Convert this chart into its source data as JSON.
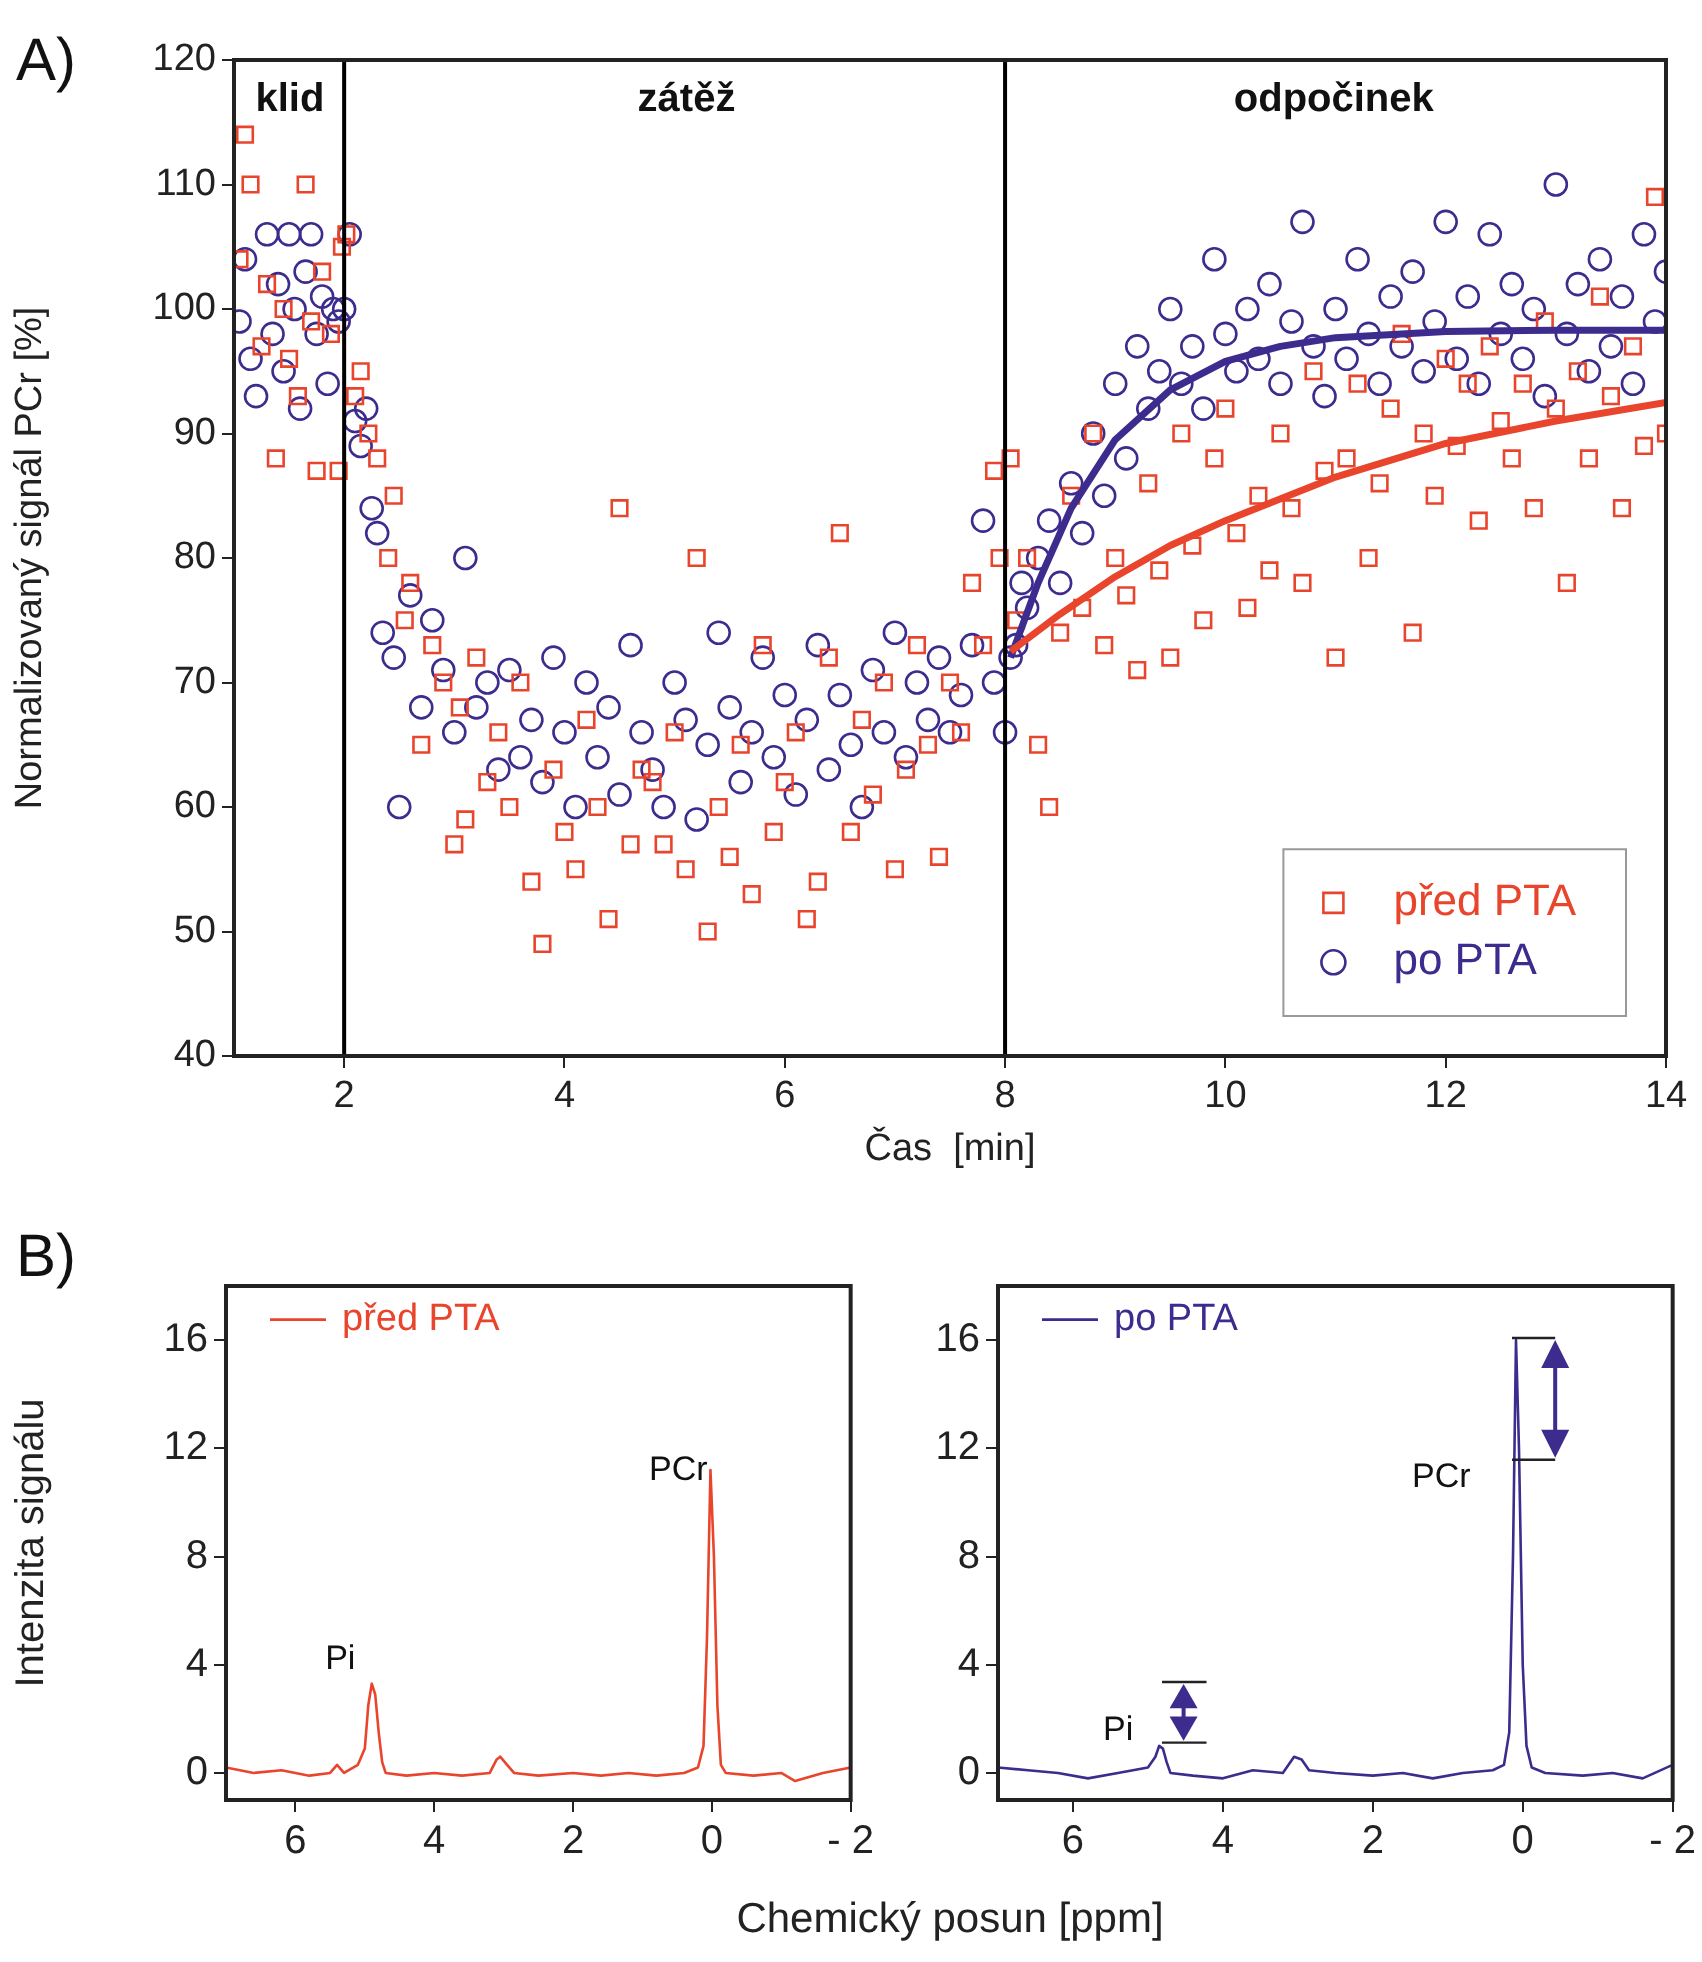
{
  "chart_data": [
    {
      "type": "scatter",
      "title": "A)",
      "xlabel": "Čas  [min]",
      "ylabel": "Normalizovaný signál PCr [%]",
      "xlim": [
        1,
        14
      ],
      "xticks": [
        2,
        4,
        6,
        8,
        10,
        12,
        14
      ],
      "ylim": [
        40,
        120
      ],
      "yticks": [
        40,
        50,
        60,
        70,
        80,
        90,
        100,
        110,
        120
      ],
      "grid": false,
      "legend": "bottom right",
      "series": [
        {
          "name": "před PTA",
          "color": "#e8452c",
          "marker": "square",
          "x": [
            1.05,
            1.1,
            1.15,
            1.25,
            1.3,
            1.38,
            1.45,
            1.5,
            1.58,
            1.65,
            1.7,
            1.75,
            1.8,
            1.88,
            1.95,
            1.98,
            2.02,
            2.1,
            2.15,
            2.22,
            2.3,
            2.4,
            2.45,
            2.55,
            2.6,
            2.7,
            2.8,
            2.9,
            3.0,
            3.05,
            3.1,
            3.2,
            3.3,
            3.4,
            3.5,
            3.6,
            3.7,
            3.8,
            3.9,
            4.0,
            4.1,
            4.2,
            4.3,
            4.4,
            4.5,
            4.6,
            4.7,
            4.8,
            4.9,
            5.0,
            5.1,
            5.2,
            5.3,
            5.4,
            5.5,
            5.6,
            5.7,
            5.8,
            5.9,
            6.0,
            6.1,
            6.2,
            6.3,
            6.4,
            6.5,
            6.6,
            6.7,
            6.8,
            6.9,
            7.0,
            7.1,
            7.2,
            7.3,
            7.4,
            7.5,
            7.6,
            7.7,
            7.8,
            7.9,
            7.95,
            8.05,
            8.1,
            8.2,
            8.3,
            8.4,
            8.5,
            8.6,
            8.7,
            8.8,
            8.9,
            9.0,
            9.1,
            9.2,
            9.3,
            9.4,
            9.5,
            9.6,
            9.7,
            9.8,
            9.9,
            10.0,
            10.1,
            10.2,
            10.3,
            10.4,
            10.5,
            10.6,
            10.7,
            10.8,
            10.9,
            11.0,
            11.1,
            11.2,
            11.3,
            11.4,
            11.5,
            11.6,
            11.7,
            11.8,
            11.9,
            12.0,
            12.1,
            12.2,
            12.3,
            12.4,
            12.5,
            12.6,
            12.7,
            12.8,
            12.9,
            13.0,
            13.1,
            13.2,
            13.3,
            13.4,
            13.5,
            13.6,
            13.7,
            13.8,
            13.9,
            14.0
          ],
          "values": [
            104,
            114,
            110,
            97,
            102,
            88,
            100,
            96,
            93,
            110,
            99,
            87,
            103,
            98,
            87,
            105,
            106,
            93,
            95,
            90,
            88,
            80,
            85,
            75,
            78,
            65,
            73,
            70,
            57,
            68,
            59,
            72,
            62,
            66,
            60,
            70,
            54,
            49,
            63,
            58,
            55,
            67,
            60,
            51,
            84,
            57,
            63,
            62,
            57,
            66,
            55,
            80,
            50,
            60,
            56,
            65,
            53,
            73,
            58,
            62,
            66,
            51,
            54,
            72,
            82,
            58,
            67,
            61,
            70,
            55,
            63,
            73,
            65,
            56,
            70,
            66,
            78,
            73,
            87,
            80,
            88,
            75,
            80,
            65,
            60,
            74,
            85,
            76,
            90,
            73,
            80,
            77,
            71,
            86,
            79,
            72,
            90,
            81,
            75,
            88,
            92,
            82,
            76,
            85,
            79,
            90,
            84,
            78,
            95,
            87,
            72,
            88,
            94,
            80,
            86,
            92,
            98,
            74,
            90,
            85,
            96,
            89,
            94,
            83,
            97,
            91,
            88,
            94,
            84,
            99,
            92,
            78,
            95,
            88,
            101,
            93,
            84,
            97,
            89,
            109,
            90
          ]
        },
        {
          "name": "po PTA",
          "color": "#3d2b8e",
          "marker": "circle",
          "x": [
            1.05,
            1.1,
            1.15,
            1.2,
            1.3,
            1.35,
            1.4,
            1.45,
            1.5,
            1.55,
            1.6,
            1.65,
            1.7,
            1.75,
            1.8,
            1.85,
            1.9,
            1.95,
            2.0,
            2.05,
            2.1,
            2.15,
            2.2,
            2.25,
            2.3,
            2.35,
            2.45,
            2.5,
            2.6,
            2.7,
            2.8,
            2.9,
            3.0,
            3.1,
            3.2,
            3.3,
            3.4,
            3.5,
            3.6,
            3.7,
            3.8,
            3.9,
            4.0,
            4.1,
            4.2,
            4.3,
            4.4,
            4.5,
            4.6,
            4.7,
            4.8,
            4.9,
            5.0,
            5.1,
            5.2,
            5.3,
            5.4,
            5.5,
            5.6,
            5.7,
            5.8,
            5.9,
            6.0,
            6.1,
            6.2,
            6.3,
            6.4,
            6.5,
            6.6,
            6.7,
            6.8,
            6.9,
            7.0,
            7.1,
            7.2,
            7.3,
            7.4,
            7.5,
            7.6,
            7.7,
            7.8,
            7.9,
            8.0,
            8.05,
            8.1,
            8.15,
            8.2,
            8.3,
            8.4,
            8.5,
            8.6,
            8.7,
            8.8,
            8.9,
            9.0,
            9.1,
            9.2,
            9.3,
            9.4,
            9.5,
            9.6,
            9.7,
            9.8,
            9.9,
            10.0,
            10.1,
            10.2,
            10.3,
            10.4,
            10.5,
            10.6,
            10.7,
            10.8,
            10.9,
            11.0,
            11.1,
            11.2,
            11.3,
            11.4,
            11.5,
            11.6,
            11.7,
            11.8,
            11.9,
            12.0,
            12.1,
            12.2,
            12.3,
            12.4,
            12.5,
            12.6,
            12.7,
            12.8,
            12.9,
            13.0,
            13.1,
            13.2,
            13.3,
            13.4,
            13.5,
            13.6,
            13.7,
            13.8,
            13.9,
            14.0
          ],
          "values": [
            99,
            104,
            96,
            93,
            106,
            98,
            102,
            95,
            106,
            100,
            92,
            103,
            106,
            98,
            101,
            94,
            100,
            99,
            100,
            106,
            91,
            89,
            92,
            84,
            82,
            74,
            72,
            60,
            77,
            68,
            75,
            71,
            66,
            80,
            68,
            70,
            63,
            71,
            64,
            67,
            62,
            72,
            66,
            60,
            70,
            64,
            68,
            61,
            73,
            66,
            63,
            60,
            70,
            67,
            59,
            65,
            74,
            68,
            62,
            66,
            72,
            64,
            69,
            61,
            67,
            73,
            63,
            69,
            65,
            60,
            71,
            66,
            74,
            64,
            70,
            67,
            72,
            66,
            69,
            73,
            83,
            70,
            66,
            72,
            73,
            78,
            76,
            80,
            83,
            78,
            86,
            82,
            90,
            85,
            94,
            88,
            97,
            92,
            95,
            100,
            94,
            97,
            92,
            104,
            98,
            95,
            100,
            96,
            102,
            94,
            99,
            107,
            97,
            93,
            100,
            96,
            104,
            98,
            94,
            101,
            97,
            103,
            95,
            99,
            107,
            96,
            101,
            94,
            106,
            98,
            102,
            96,
            100,
            93,
            110,
            98,
            102,
            95,
            104,
            97,
            101,
            94,
            106,
            99,
            103
          ]
        },
        {
          "type": "line",
          "color": "#e8452c",
          "marker": "none",
          "x": [
            8.05,
            8.5,
            9,
            9.5,
            10,
            11,
            12,
            13,
            14
          ],
          "values": [
            72.5,
            75.5,
            78.5,
            81,
            83,
            86.5,
            89.2,
            91,
            92.5
          ]
        },
        {
          "type": "line",
          "color": "#3d2b8e",
          "marker": "none",
          "x": [
            8.05,
            8.3,
            8.6,
            9,
            9.5,
            10,
            10.5,
            11,
            12,
            13,
            14
          ],
          "values": [
            72,
            78,
            84,
            89.5,
            93.5,
            95.8,
            97,
            97.7,
            98.2,
            98.3,
            98.3
          ]
        }
      ],
      "ref_lines": [
        {
          "axis": "x",
          "value": 2,
          "color": "#000000"
        },
        {
          "axis": "x",
          "value": 8,
          "color": "#000000"
        }
      ],
      "annotations": [
        "klid",
        "zátěž",
        "odpočinek"
      ]
    },
    {
      "type": "line",
      "title": "B)",
      "xlabel": "Chemický posun [ppm]",
      "ylabel": "Intenzita signálu",
      "xlim": [
        7,
        -2
      ],
      "xticks": [
        6,
        4,
        2,
        0,
        {
          "value": -2,
          "label": "- 2"
        }
      ],
      "ylim": [
        -1,
        18
      ],
      "yticks": [
        0,
        4,
        8,
        12,
        16
      ],
      "grid": false,
      "legend": "top left",
      "marker": "none",
      "series": [
        {
          "name": "před PTA",
          "color": "#e8452c",
          "x": [
            7,
            6.6,
            6.2,
            5.8,
            5.5,
            5.4,
            5.3,
            5.1,
            5.0,
            4.95,
            4.9,
            4.85,
            4.8,
            4.75,
            4.7,
            4.4,
            4.0,
            3.6,
            3.2,
            3.1,
            3.05,
            2.95,
            2.85,
            2.5,
            2.0,
            1.6,
            1.2,
            0.8,
            0.4,
            0.2,
            0.12,
            0.07,
            0.02,
            -0.03,
            -0.08,
            -0.13,
            -0.2,
            -0.6,
            -1.0,
            -1.2,
            -1.6,
            -2
          ],
          "values": [
            0.2,
            0.0,
            0.1,
            -0.1,
            0.0,
            0.3,
            0.0,
            0.3,
            0.9,
            2.5,
            3.3,
            2.9,
            1.5,
            0.4,
            0.0,
            -0.1,
            0.0,
            -0.1,
            0.0,
            0.5,
            0.6,
            0.3,
            0.0,
            -0.1,
            0.0,
            -0.1,
            0.0,
            -0.1,
            0.0,
            0.2,
            1.0,
            5.0,
            11.2,
            8.0,
            2.5,
            0.3,
            0.0,
            -0.1,
            0.0,
            -0.3,
            0.0,
            0.2
          ]
        }
      ],
      "annotations": [
        "Pi",
        "PCr"
      ]
    },
    {
      "type": "line",
      "xlim": [
        7,
        -2
      ],
      "xticks": [
        6,
        4,
        2,
        0,
        {
          "value": -2,
          "label": "- 2"
        }
      ],
      "ylim": [
        -1,
        18
      ],
      "yticks": [
        0,
        4,
        8,
        12,
        16
      ],
      "grid": false,
      "legend": "top left",
      "marker": "none",
      "series": [
        {
          "name": "po PTA",
          "color": "#3d2b8e",
          "x": [
            7,
            6.6,
            6.2,
            5.8,
            5.4,
            5.0,
            4.9,
            4.85,
            4.8,
            4.75,
            4.7,
            4.4,
            4.0,
            3.6,
            3.2,
            3.05,
            2.95,
            2.85,
            2.5,
            2.0,
            1.6,
            1.2,
            0.8,
            0.4,
            0.25,
            0.18,
            0.13,
            0.09,
            0.05,
            0.0,
            -0.05,
            -0.12,
            -0.3,
            -0.8,
            -1.2,
            -1.6,
            -2
          ],
          "values": [
            0.2,
            0.1,
            0.0,
            -0.2,
            0.0,
            0.2,
            0.6,
            1.0,
            0.9,
            0.4,
            0.0,
            -0.1,
            -0.2,
            0.1,
            0.0,
            0.6,
            0.5,
            0.1,
            0.0,
            -0.1,
            0.0,
            -0.2,
            0.0,
            0.1,
            0.3,
            1.5,
            8.0,
            16.0,
            12.0,
            4.0,
            1.0,
            0.2,
            0.0,
            -0.1,
            0.0,
            -0.2,
            0.3
          ]
        }
      ],
      "annotations": [
        "Pi",
        "PCr"
      ]
    }
  ]
}
